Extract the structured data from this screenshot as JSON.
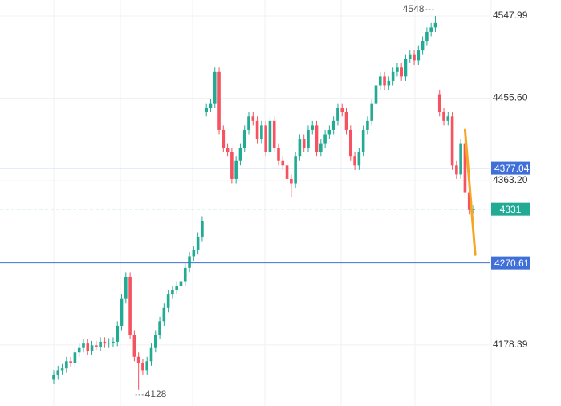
{
  "chart_data": {
    "type": "candlestick",
    "categories": [
      null,
      null,
      null,
      null,
      null,
      null,
      null,
      null,
      null,
      null,
      null,
      null,
      null,
      null,
      null,
      null,
      null,
      null,
      null,
      null,
      null,
      null,
      null,
      null,
      null,
      null,
      null,
      null,
      null,
      null,
      null,
      null,
      null,
      null,
      null,
      null,
      null,
      null,
      null,
      null,
      null,
      null,
      null,
      null,
      null,
      null,
      null,
      null,
      null,
      null,
      null,
      null,
      null,
      null,
      null,
      null,
      null,
      null,
      null,
      null,
      null,
      null,
      null,
      null,
      null,
      null,
      null,
      null,
      null,
      null,
      null,
      null,
      null,
      null,
      null,
      null,
      null,
      null,
      null,
      null,
      null,
      null,
      null,
      null,
      null,
      null,
      null,
      null,
      null,
      null,
      null,
      null,
      null,
      null,
      null,
      null,
      null,
      null,
      null,
      null
    ],
    "open": [
      4140,
      4145,
      4150,
      4152,
      4160,
      4158,
      4170,
      4175,
      4180,
      4172,
      4178,
      4176,
      4182,
      4180,
      4181,
      4182,
      4200,
      4230,
      4255,
      4190,
      4165,
      4158,
      4150,
      4160,
      4175,
      4190,
      4205,
      4220,
      4235,
      4240,
      4245,
      4250,
      4265,
      4278,
      4285,
      4300,
      4440,
      4445,
      4450,
      4485,
      4420,
      4400,
      4395,
      4365,
      4385,
      4400,
      4420,
      4435,
      4430,
      4410,
      4425,
      4395,
      4430,
      4400,
      4385,
      4380,
      4365,
      4360,
      4390,
      4410,
      4400,
      4420,
      4425,
      4395,
      4405,
      4415,
      4420,
      4430,
      4445,
      4440,
      4420,
      4390,
      4380,
      4395,
      4420,
      4430,
      4450,
      4470,
      4480,
      4470,
      4475,
      4485,
      4490,
      4480,
      4500,
      4505,
      4498,
      4510,
      4520,
      4530,
      4535,
      4460,
      4440,
      4430,
      4435,
      4380,
      4370,
      4405,
      4350,
      4330
    ],
    "high": [
      4150,
      4155,
      4157,
      4165,
      4165,
      4175,
      4180,
      4185,
      4185,
      4183,
      4183,
      4187,
      4187,
      4186,
      4187,
      4205,
      4235,
      4260,
      4260,
      4195,
      4170,
      4163,
      4165,
      4180,
      4195,
      4210,
      4225,
      4240,
      4245,
      4250,
      4255,
      4270,
      4283,
      4290,
      4305,
      4323,
      4450,
      4455,
      4490,
      4490,
      4425,
      4405,
      4400,
      4390,
      4405,
      4425,
      4440,
      4440,
      4435,
      4430,
      4430,
      4435,
      4435,
      4405,
      4390,
      4385,
      4370,
      4395,
      4415,
      4415,
      4425,
      4430,
      4430,
      4410,
      4420,
      4425,
      4435,
      4450,
      4450,
      4445,
      4425,
      4395,
      4400,
      4425,
      4435,
      4455,
      4475,
      4485,
      4485,
      4480,
      4490,
      4495,
      4495,
      4505,
      4510,
      4510,
      4515,
      4525,
      4535,
      4540,
      4548,
      4465,
      4445,
      4440,
      4440,
      4385,
      4410,
      4410,
      4355,
      4336
    ],
    "low": [
      4135,
      4140,
      4145,
      4147,
      4153,
      4153,
      4165,
      4170,
      4167,
      4167,
      4173,
      4171,
      4175,
      4175,
      4176,
      4177,
      4195,
      4225,
      4185,
      4160,
      4128,
      4145,
      4145,
      4155,
      4170,
      4185,
      4200,
      4215,
      4230,
      4235,
      4240,
      4245,
      4260,
      4273,
      4280,
      4295,
      4435,
      4440,
      4445,
      4415,
      4395,
      4390,
      4360,
      4360,
      4380,
      4395,
      4415,
      4425,
      4405,
      4405,
      4390,
      4390,
      4395,
      4380,
      4375,
      4360,
      4345,
      4355,
      4385,
      4395,
      4395,
      4415,
      4390,
      4390,
      4400,
      4410,
      4415,
      4425,
      4435,
      4415,
      4385,
      4375,
      4375,
      4390,
      4415,
      4425,
      4445,
      4465,
      4465,
      4465,
      4470,
      4480,
      4475,
      4475,
      4495,
      4493,
      4493,
      4505,
      4515,
      4525,
      4530,
      4435,
      4425,
      4425,
      4375,
      4365,
      4365,
      4345,
      4325,
      4326
    ],
    "close": [
      4145,
      4150,
      4152,
      4160,
      4158,
      4170,
      4175,
      4180,
      4172,
      4178,
      4176,
      4182,
      4180,
      4181,
      4182,
      4200,
      4230,
      4255,
      4190,
      4165,
      4158,
      4150,
      4160,
      4175,
      4190,
      4205,
      4220,
      4235,
      4240,
      4245,
      4250,
      4265,
      4278,
      4285,
      4300,
      4318,
      4445,
      4450,
      4485,
      4420,
      4400,
      4395,
      4365,
      4385,
      4400,
      4420,
      4435,
      4430,
      4410,
      4425,
      4395,
      4430,
      4400,
      4385,
      4380,
      4365,
      4360,
      4390,
      4410,
      4400,
      4420,
      4425,
      4395,
      4405,
      4415,
      4420,
      4430,
      4445,
      4440,
      4420,
      4390,
      4380,
      4395,
      4420,
      4430,
      4450,
      4470,
      4480,
      4470,
      4475,
      4485,
      4490,
      4480,
      4500,
      4505,
      4498,
      4510,
      4520,
      4530,
      4535,
      4540,
      4440,
      4430,
      4435,
      4380,
      4370,
      4405,
      4350,
      4330,
      4331
    ],
    "up_color": "#22ab94",
    "down_color": "#f7525f",
    "ylim": [
      4109.8,
      4566.0
    ],
    "yticks": [
      4547.99,
      {
        "value": 4455.6,
        "label": "4455.60"
      },
      {
        "value": 4363.2,
        "label": "4363.20"
      },
      4178.39
    ],
    "grid": true,
    "price_lines": [
      {
        "value": 4377.04,
        "color": "#3f6fd8"
      },
      {
        "value": 4270.61,
        "color": "#3f6fd8"
      }
    ],
    "last_price": {
      "value": 4331,
      "color": "#22ab94"
    },
    "high_marker": {
      "value": 4548,
      "index": 90
    },
    "low_marker": {
      "value": 4128,
      "index": 20
    },
    "trend_line": {
      "color": "#f5a623",
      "from": [
        97,
        4420
      ],
      "to": [
        99.4,
        4280
      ]
    }
  }
}
